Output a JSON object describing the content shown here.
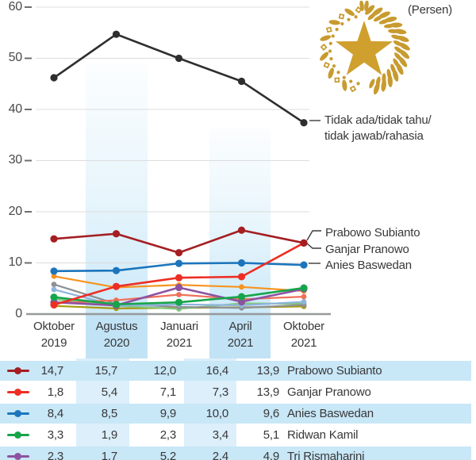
{
  "unit_label": "(Persen)",
  "emblem": {
    "icon": "gold-star-wreath-emblem",
    "wreath_color": "#c89b30",
    "star_color": "#cfa02e"
  },
  "labels": {
    "no_answer_1": "Tidak ada/tidak tahu/",
    "no_answer_2": "tidak jawab/rahasia",
    "prabowo": "Prabowo Subianto",
    "ganjar": "Ganjar Pranowo",
    "anies": "Anies Baswedan"
  },
  "chart_data": {
    "type": "line",
    "title": "",
    "ylabel": "(Persen)",
    "ylim": [
      0,
      60
    ],
    "yticks": [
      0,
      10,
      20,
      30,
      40,
      50,
      60
    ],
    "ytick_labels": [
      "0",
      "10",
      "20",
      "30",
      "40",
      "50",
      "60"
    ],
    "categories": [
      [
        "Oktober",
        "2019"
      ],
      [
        "Agustus",
        "2020"
      ],
      [
        "Januari",
        "2021"
      ],
      [
        "April",
        "2021"
      ],
      [
        "Oktober",
        "2021"
      ]
    ],
    "highlighted_columns": [
      "Agustus 2020",
      "April 2021"
    ],
    "grid": true,
    "series": [
      {
        "name": "unlabeled-olive",
        "color": "#a89a10",
        "labeled": false,
        "estimated": true,
        "values": [
          1.6,
          1.1,
          1.2,
          1.3,
          1.5
        ]
      },
      {
        "name": "unlabeled-light-green",
        "color": "#82c77e",
        "labeled": false,
        "estimated": true,
        "values": [
          2.9,
          1.6,
          1.0,
          2.1,
          2.0
        ]
      },
      {
        "name": "unlabeled-gray",
        "color": "#8e9093",
        "labeled": false,
        "estimated": true,
        "values": [
          5.8,
          2.0,
          1.4,
          1.2,
          1.8
        ]
      },
      {
        "name": "unlabeled-light-blue",
        "color": "#8fb4de",
        "labeled": false,
        "estimated": true,
        "values": [
          4.8,
          1.6,
          1.9,
          1.7,
          2.4
        ]
      },
      {
        "name": "unlabeled-salmon",
        "color": "#ef7058",
        "labeled": false,
        "estimated": true,
        "values": [
          2.1,
          2.7,
          3.8,
          2.9,
          3.4
        ]
      },
      {
        "name": "unlabeled-orange",
        "color": "#f7941e",
        "labeled": false,
        "estimated": true,
        "values": [
          7.4,
          5.2,
          5.7,
          5.3,
          4.5
        ]
      },
      {
        "name": "Tri Rismaharini",
        "color": "#8d52a1",
        "labeled": true,
        "values": [
          2.3,
          1.7,
          5.2,
          2.4,
          4.9
        ]
      },
      {
        "name": "Ridwan Kamil",
        "color": "#17a54b",
        "labeled": true,
        "values": [
          3.3,
          1.9,
          2.3,
          3.4,
          5.1
        ]
      },
      {
        "name": "Anies Baswedan",
        "color": "#1c75bc",
        "labeled": true,
        "values": [
          8.4,
          8.5,
          9.9,
          10.0,
          9.6
        ]
      },
      {
        "name": "Ganjar Pranowo",
        "color": "#ee2e24",
        "labeled": true,
        "values": [
          1.8,
          5.4,
          7.1,
          7.3,
          13.9
        ]
      },
      {
        "name": "Prabowo Subianto",
        "color": "#a41e22",
        "labeled": true,
        "values": [
          14.7,
          15.7,
          12.0,
          16.4,
          13.9
        ]
      },
      {
        "name": "Tidak ada/tidak tahu/tidak jawab/rahasia",
        "color": "#2e2e2e",
        "labeled": true,
        "estimated": true,
        "values": [
          46.2,
          54.7,
          50.0,
          45.5,
          37.4
        ]
      }
    ]
  },
  "table": {
    "rows": [
      {
        "series": "Prabowo Subianto",
        "color": "#a41e22",
        "values": [
          "14,7",
          "15,7",
          "12,0",
          "16,4",
          "13,9"
        ]
      },
      {
        "series": "Ganjar Pranowo",
        "color": "#ee2e24",
        "values": [
          "1,8",
          "5,4",
          "7,1",
          "7,3",
          "13,9"
        ]
      },
      {
        "series": "Anies Baswedan",
        "color": "#1c75bc",
        "values": [
          "8,4",
          "8,5",
          "9,9",
          "10,0",
          "9,6"
        ]
      },
      {
        "series": "Ridwan Kamil",
        "color": "#17a54b",
        "values": [
          "3,3",
          "1,9",
          "2,3",
          "3,4",
          "5,1"
        ]
      },
      {
        "series": "Tri Rismaharini",
        "color": "#8d52a1",
        "values": [
          "2,3",
          "1,7",
          "5,2",
          "2,4",
          "4,9"
        ]
      }
    ]
  }
}
